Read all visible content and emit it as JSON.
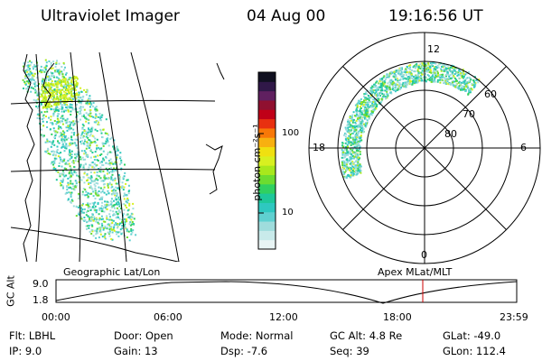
{
  "header": {
    "title": "Ultraviolet Imager",
    "date": "04 Aug 00",
    "time": "19:16:56 UT"
  },
  "left_panel": {
    "caption": "Geographic Lat/Lon"
  },
  "colorbar": {
    "unit_label": "photon cm⁻²s⁻¹",
    "ticks": [
      "100",
      "10"
    ],
    "colors": [
      "#e8f4f4",
      "#c8eaea",
      "#9fdcdc",
      "#5fd0d0",
      "#2ec8c0",
      "#1ec89a",
      "#30d060",
      "#6cdc30",
      "#a8e81c",
      "#d8f020",
      "#f0e010",
      "#f8b010",
      "#f87808",
      "#e83010",
      "#c00018",
      "#901030",
      "#602060",
      "#301848",
      "#101020"
    ]
  },
  "polar_plot": {
    "caption": "Apex MLat/MLT",
    "mlt_labels": {
      "top": "12",
      "left": "18",
      "right": "6",
      "bottom": "0"
    },
    "lat_labels": [
      "60",
      "70",
      "80"
    ]
  },
  "timeline": {
    "axis_label": "GC Alt",
    "y_ticks": [
      "9.0",
      "1.8"
    ],
    "x_ticks": [
      "00:00",
      "06:00",
      "12:00",
      "18:00",
      "23:59"
    ],
    "marker_time": "19:16:56",
    "marker_color": "#cc0000"
  },
  "info": {
    "flt": "Flt: LBHL",
    "ip": "IP:  9.0",
    "door": "Door: Open",
    "gain": "Gain: 13",
    "mode": "Mode: Normal",
    "dsp": "Dsp:   -7.6",
    "gcalt": "GC Alt: 4.8 Re",
    "seq": "Seq: 39",
    "glat": "GLat: -49.0",
    "glon": "GLon: 112.4"
  }
}
